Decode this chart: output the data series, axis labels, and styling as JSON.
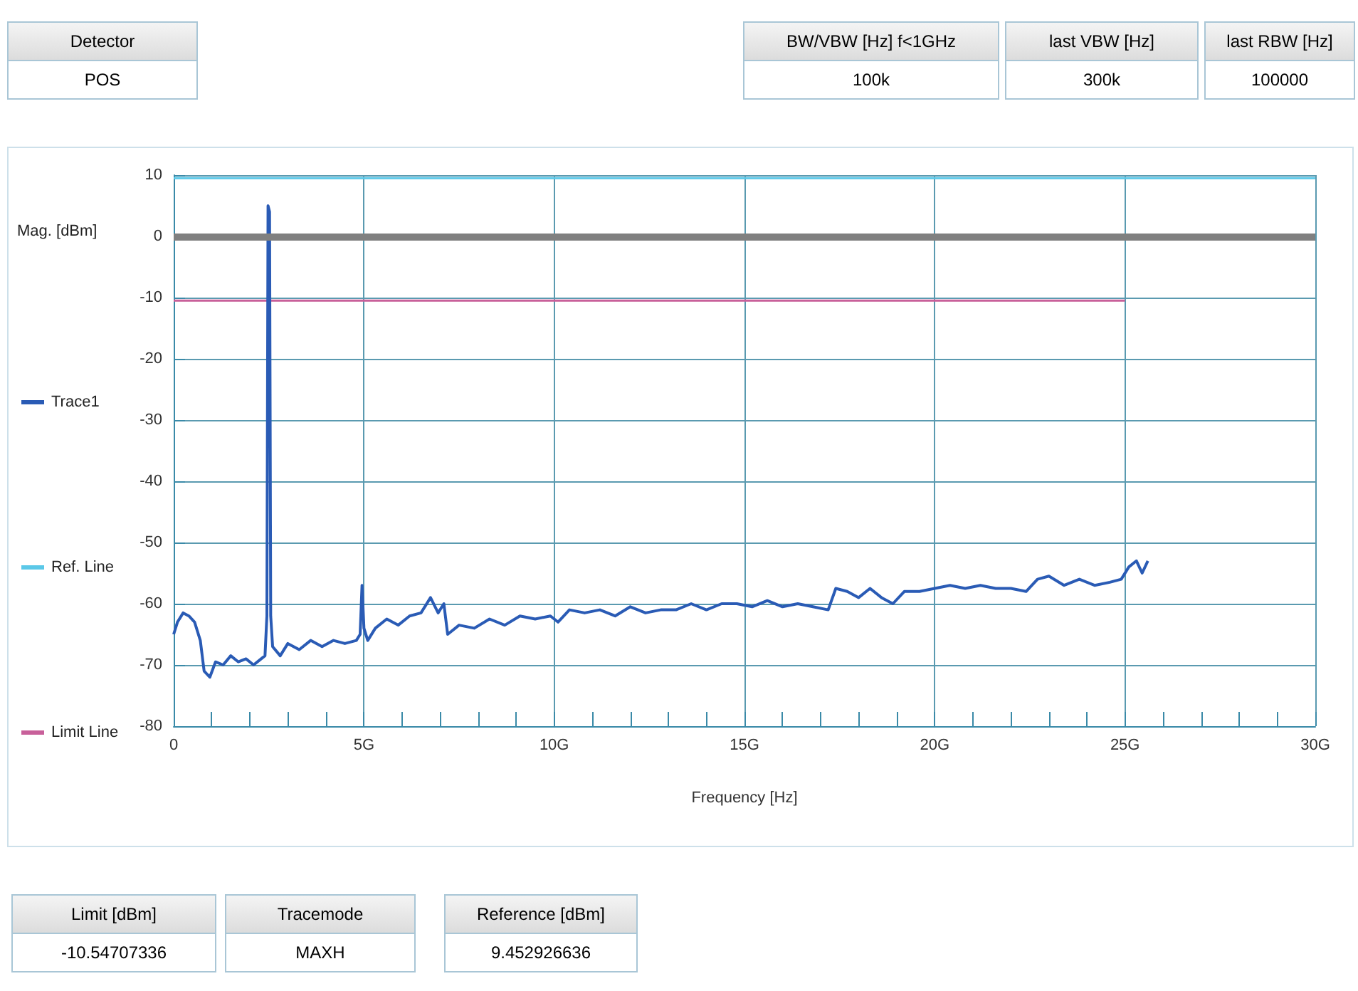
{
  "chart_data": {
    "type": "line",
    "xlabel": "Frequency [Hz]",
    "ylabel": "Mag. [dBm]",
    "xlim": [
      0,
      30
    ],
    "xticks": [
      0,
      {
        "value": 5,
        "label": "5G"
      },
      {
        "value": 10,
        "label": "10G"
      },
      {
        "value": 15,
        "label": "15G"
      },
      {
        "value": 20,
        "label": "20G"
      },
      {
        "value": 25,
        "label": "25G"
      },
      {
        "value": 30,
        "label": "30G"
      }
    ],
    "ylim": [
      -80,
      10
    ],
    "yticks": [
      -80,
      -70,
      -60,
      -50,
      -40,
      -30,
      -20,
      -10,
      0,
      10
    ],
    "grid": true,
    "legend": "left",
    "marker": "none",
    "line_style": "solid",
    "ref_lines": [
      {
        "axis": "y",
        "value": 0,
        "color": "#808080"
      }
    ],
    "series": [
      {
        "name": "Trace1",
        "color": "#2a5bb5",
        "x": [
          0,
          0.1,
          0.25,
          0.4,
          0.55,
          0.7,
          0.8,
          0.95,
          1.1,
          1.3,
          1.5,
          1.7,
          1.9,
          2.1,
          2.3,
          2.4,
          2.45,
          2.48,
          2.52,
          2.55,
          2.6,
          2.8,
          3.0,
          3.3,
          3.6,
          3.9,
          4.2,
          4.5,
          4.8,
          4.9,
          4.95,
          5.0,
          5.1,
          5.3,
          5.6,
          5.9,
          6.2,
          6.5,
          6.75,
          6.95,
          7.1,
          7.2,
          7.5,
          7.9,
          8.3,
          8.7,
          9.1,
          9.5,
          9.9,
          10.1,
          10.4,
          10.8,
          11.2,
          11.6,
          12.0,
          12.4,
          12.8,
          13.2,
          13.6,
          14.0,
          14.4,
          14.8,
          15.2,
          15.6,
          16.0,
          16.4,
          16.8,
          17.2,
          17.4,
          17.7,
          18.0,
          18.3,
          18.6,
          18.9,
          19.2,
          19.6,
          20.0,
          20.4,
          20.8,
          21.2,
          21.6,
          22.0,
          22.4,
          22.7,
          23.0,
          23.4,
          23.8,
          24.2,
          24.6,
          24.9,
          25.1,
          25.3,
          25.45,
          25.6
        ],
        "values": [
          -65,
          -63,
          -61.5,
          -62,
          -63,
          -66,
          -71,
          -72,
          -69.5,
          -70,
          -68.5,
          -69.5,
          -69,
          -70,
          -69,
          -68.5,
          -62,
          5,
          4,
          -62,
          -67,
          -68.5,
          -66.5,
          -67.5,
          -66,
          -67,
          -66,
          -66.5,
          -66,
          -65,
          -57,
          -64,
          -66,
          -64,
          -62.5,
          -63.5,
          -62,
          -61.5,
          -59,
          -61.5,
          -60,
          -65,
          -63.5,
          -64,
          -62.5,
          -63.5,
          -62,
          -62.5,
          -62,
          -63,
          -61,
          -61.5,
          -61,
          -62,
          -60.5,
          -61.5,
          -61,
          -61,
          -60,
          -61,
          -60,
          -60,
          -60.5,
          -59.5,
          -60.5,
          -60,
          -60.5,
          -61,
          -57.5,
          -58,
          -59,
          -57.5,
          -59,
          -60,
          -58,
          -58,
          -57.5,
          -57,
          -57.5,
          -57,
          -57.5,
          -57.5,
          -58,
          -56,
          -55.5,
          -57,
          -56,
          -57,
          -56.5,
          -56,
          -54,
          -53,
          -55,
          -53
        ]
      },
      {
        "name": "Ref. Line",
        "color": "#5bc8e8",
        "x": [
          0,
          30
        ],
        "values": [
          9.5,
          9.5
        ]
      },
      {
        "name": "Limit Line",
        "color": "#c8609a",
        "x": [
          0,
          25
        ],
        "values": [
          -10.5,
          -10.5
        ]
      }
    ],
    "annotations": [
      "Detector",
      "POS",
      "BW/VBW [Hz] f<1GHz",
      "100k",
      "last VBW [Hz]",
      "300k",
      "last RBW [Hz]",
      "100000",
      "Limit [dBm]",
      "-10.54707336",
      "Tracemode",
      "MAXH",
      "Reference [dBm]",
      "9.452926636"
    ]
  }
}
